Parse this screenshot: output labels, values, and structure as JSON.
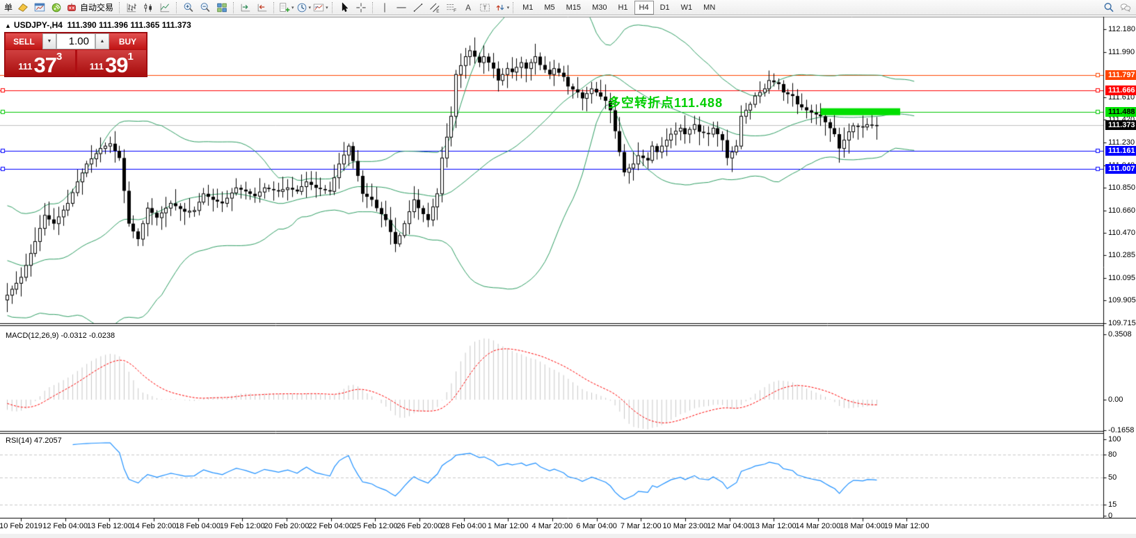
{
  "toolbar": {
    "caret_glyph": "▾",
    "groups": [
      {
        "items": [
          {
            "name": "orders-menu-label",
            "text": "单"
          },
          {
            "name": "new-order-icon"
          },
          {
            "name": "new-chart-icon"
          },
          {
            "name": "mql5-community-icon"
          },
          {
            "name": "autotrading-icon",
            "text": "自动交易"
          }
        ]
      },
      {
        "items": [
          {
            "name": "bar-chart-icon"
          },
          {
            "name": "candlestick-chart-icon"
          },
          {
            "name": "line-chart-icon"
          }
        ]
      },
      {
        "items": [
          {
            "name": "zoom-in-icon"
          },
          {
            "name": "zoom-out-icon"
          },
          {
            "name": "tile-windows-icon"
          }
        ]
      },
      {
        "items": [
          {
            "name": "auto-scroll-icon"
          },
          {
            "name": "chart-shift-icon"
          }
        ]
      },
      {
        "items": [
          {
            "name": "indicators-icon",
            "dropdown": true
          },
          {
            "name": "periods-icon",
            "dropdown": true
          },
          {
            "name": "templates-icon",
            "dropdown": true
          }
        ]
      },
      {
        "items": [
          {
            "name": "cursor-icon"
          },
          {
            "name": "crosshair-icon"
          }
        ]
      },
      {
        "items": [
          {
            "name": "vertical-line-icon"
          },
          {
            "name": "horizontal-line-icon"
          },
          {
            "name": "trendline-icon"
          },
          {
            "name": "equidistant-channel-icon"
          },
          {
            "name": "fibonacci-icon"
          },
          {
            "name": "text-icon"
          },
          {
            "name": "text-label-icon"
          },
          {
            "name": "arrows-icon",
            "dropdown": true
          }
        ]
      }
    ],
    "timeframes": [
      {
        "label": "M1"
      },
      {
        "label": "M5"
      },
      {
        "label": "M15"
      },
      {
        "label": "M30"
      },
      {
        "label": "H1"
      },
      {
        "label": "H4",
        "active": true
      },
      {
        "label": "D1"
      },
      {
        "label": "W1"
      },
      {
        "label": "MN"
      }
    ],
    "right_icons": [
      {
        "name": "search-icon"
      },
      {
        "name": "chat-icon"
      }
    ]
  },
  "chart": {
    "collapse_arrow": "▲",
    "title_symbol": "USDJPY-,H4",
    "title_quotes": "111.390 111.396 111.365 111.373",
    "open": "111.390",
    "high": "111.396",
    "low": "111.365",
    "close": "111.373"
  },
  "trade_panel": {
    "sell_label": "SELL",
    "buy_label": "BUY",
    "volume": "1.00",
    "spin_down_glyph": "▼",
    "spin_up_glyph": "▲",
    "sell_price": {
      "prefix": "111",
      "big": "37",
      "sup": "3"
    },
    "buy_price": {
      "prefix": "111",
      "big": "39",
      "sup": "1"
    }
  },
  "annotation": {
    "text": "多空转折点111.488",
    "color": "#00CE00"
  },
  "macd": {
    "label": "MACD(12,26,9) -0.0312 -0.0238"
  },
  "rsi": {
    "label": "RSI(14) 47.2057"
  },
  "chart_data": {
    "type": "candlestick",
    "symbol": "USDJPY-",
    "period": "H4",
    "grid": false,
    "candle_count": 187,
    "price_axis_ticks": [
      {
        "label": "112.180",
        "price": 112.18
      },
      {
        "label": "111.990",
        "price": 111.99
      },
      {
        "label": "111.610",
        "price": 111.61
      },
      {
        "label": "111.420",
        "price": 111.42
      },
      {
        "label": "111.230",
        "price": 111.23
      },
      {
        "label": "111.040",
        "price": 111.04
      },
      {
        "label": "110.850",
        "price": 110.85
      },
      {
        "label": "110.660",
        "price": 110.66
      },
      {
        "label": "110.470",
        "price": 110.47
      },
      {
        "label": "110.285",
        "price": 110.285
      },
      {
        "label": "110.095",
        "price": 110.095
      },
      {
        "label": "109.905",
        "price": 109.905
      },
      {
        "label": "109.715",
        "price": 109.715
      }
    ],
    "levels": [
      {
        "label": "111.797",
        "price": 111.797,
        "line_color": "#FF4500",
        "badge_bg": "#FF4500",
        "badge_fg": "#FFFFFF"
      },
      {
        "label": "111.666",
        "price": 111.666,
        "line_color": "#FF0000",
        "badge_bg": "#FF0000",
        "badge_fg": "#FFFFFF"
      },
      {
        "label": "111.488",
        "price": 111.488,
        "line_color": "#00C800",
        "badge_bg": "#00E400",
        "badge_fg": "#000000"
      },
      {
        "label": "111.161",
        "price": 111.161,
        "line_color": "#0000FF",
        "badge_bg": "#0000FF",
        "badge_fg": "#FFFFFF"
      },
      {
        "label": "111.007",
        "price": 111.007,
        "line_color": "#0000FF",
        "badge_bg": "#0000FF",
        "badge_fg": "#FFFFFF"
      }
    ],
    "current_price": {
      "label": "111.373",
      "price": 111.373,
      "line_color": "#C0C0C0",
      "badge_bg": "#000000",
      "badge_fg": "#FFFFFF"
    },
    "highlight_bar": {
      "price": 111.488,
      "color": "#00DF00",
      "from_candle": 174,
      "to_candle": 191,
      "thickness": 10
    },
    "bollinger": {
      "period": 34,
      "deviation": 2,
      "color": "#2E9E63"
    },
    "candle_up_color": "#FFFFFF",
    "candle_down_color": "#000000",
    "candle_border": "#000000",
    "close_path": [
      [
        0,
        109.95
      ],
      [
        3,
        110.1
      ],
      [
        6,
        110.4
      ],
      [
        8,
        110.62
      ],
      [
        10,
        110.55
      ],
      [
        13,
        110.72
      ],
      [
        15,
        110.9
      ],
      [
        17,
        111.05
      ],
      [
        20,
        111.18
      ],
      [
        22,
        111.22
      ],
      [
        24,
        111.1
      ],
      [
        26,
        110.55
      ],
      [
        28,
        110.42
      ],
      [
        30,
        110.68
      ],
      [
        32,
        110.6
      ],
      [
        35,
        110.72
      ],
      [
        38,
        110.65
      ],
      [
        40,
        110.66
      ],
      [
        42,
        110.8
      ],
      [
        44,
        110.75
      ],
      [
        46,
        110.72
      ],
      [
        49,
        110.85
      ],
      [
        51,
        110.82
      ],
      [
        53,
        110.78
      ],
      [
        55,
        110.85
      ],
      [
        58,
        110.82
      ],
      [
        60,
        110.85
      ],
      [
        62,
        110.82
      ],
      [
        64,
        110.9
      ],
      [
        66,
        110.85
      ],
      [
        69,
        110.82
      ],
      [
        71,
        111.05
      ],
      [
        73,
        111.2
      ],
      [
        75,
        110.95
      ],
      [
        76,
        110.8
      ],
      [
        78,
        110.75
      ],
      [
        79,
        110.68
      ],
      [
        81,
        110.58
      ],
      [
        83,
        110.38
      ],
      [
        84,
        110.45
      ],
      [
        87,
        110.75
      ],
      [
        88,
        110.68
      ],
      [
        90,
        110.58
      ],
      [
        92,
        110.8
      ],
      [
        93,
        111.1
      ],
      [
        95,
        111.45
      ],
      [
        96,
        111.8
      ],
      [
        98,
        111.95
      ],
      [
        99,
        112.0
      ],
      [
        101,
        111.9
      ],
      [
        102,
        111.95
      ],
      [
        104,
        111.85
      ],
      [
        105,
        111.75
      ],
      [
        107,
        111.85
      ],
      [
        108,
        111.82
      ],
      [
        110,
        111.9
      ],
      [
        111,
        111.85
      ],
      [
        113,
        111.95
      ],
      [
        114,
        111.88
      ],
      [
        116,
        111.8
      ],
      [
        117,
        111.85
      ],
      [
        119,
        111.78
      ],
      [
        120,
        111.7
      ],
      [
        122,
        111.65
      ],
      [
        123,
        111.6
      ],
      [
        125,
        111.68
      ],
      [
        126,
        111.65
      ],
      [
        128,
        111.58
      ],
      [
        129,
        111.5
      ],
      [
        131,
        111.15
      ],
      [
        132,
        110.98
      ],
      [
        134,
        111.05
      ],
      [
        135,
        111.12
      ],
      [
        137,
        111.08
      ],
      [
        138,
        111.2
      ],
      [
        139,
        111.15
      ],
      [
        141,
        111.25
      ],
      [
        142,
        111.3
      ],
      [
        144,
        111.35
      ],
      [
        145,
        111.3
      ],
      [
        147,
        111.38
      ],
      [
        148,
        111.32
      ],
      [
        150,
        111.3
      ],
      [
        151,
        111.35
      ],
      [
        153,
        111.25
      ],
      [
        154,
        111.1
      ],
      [
        156,
        111.2
      ],
      [
        157,
        111.45
      ],
      [
        159,
        111.55
      ],
      [
        160,
        111.62
      ],
      [
        162,
        111.68
      ],
      [
        163,
        111.75
      ],
      [
        165,
        111.72
      ],
      [
        166,
        111.65
      ],
      [
        168,
        111.62
      ],
      [
        169,
        111.55
      ],
      [
        171,
        111.5
      ],
      [
        172,
        111.48
      ],
      [
        174,
        111.45
      ],
      [
        175,
        111.4
      ],
      [
        177,
        111.3
      ],
      [
        178,
        111.18
      ],
      [
        180,
        111.32
      ],
      [
        181,
        111.37
      ],
      [
        183,
        111.36
      ],
      [
        184,
        111.38
      ],
      [
        186,
        111.373
      ]
    ],
    "macd_panel": {
      "params": [
        12,
        26,
        9
      ],
      "current_values": [
        "-0.0312",
        "-0.0238"
      ],
      "axis": [
        {
          "label": "0.3508",
          "value": 0.3508
        },
        {
          "label": "0.00",
          "value": 0
        },
        {
          "label": "-0.1658",
          "value": -0.1658
        }
      ],
      "hist_color": "#C8C8C8",
      "signal_color": "#FF0000"
    },
    "rsi_panel": {
      "period": 14,
      "current_value": 47.2057,
      "axis": [
        {
          "label": "100",
          "value": 100
        },
        {
          "label": "80",
          "value": 80
        },
        {
          "label": "50",
          "value": 50
        },
        {
          "label": "15",
          "value": 15
        },
        {
          "label": "0",
          "value": 0
        }
      ],
      "dashed_levels": [
        80,
        50,
        15
      ],
      "line_color": "#1E90FF",
      "level_color": "#C9C9C9"
    },
    "time_labels": [
      "10 Feb 2019",
      "12 Feb 04:00",
      "13 Feb 12:00",
      "14 Feb 20:00",
      "18 Feb 04:00",
      "19 Feb 12:00",
      "20 Feb 20:00",
      "22 Feb 04:00",
      "25 Feb 12:00",
      "26 Feb 20:00",
      "28 Feb 04:00",
      "1 Mar 12:00",
      "4 Mar 20:00",
      "6 Mar 04:00",
      "7 Mar 12:00",
      "10 Mar 23:00",
      "12 Mar 04:00",
      "13 Mar 12:00",
      "14 Mar 20:00",
      "18 Mar 04:00",
      "19 Mar 12:00"
    ]
  }
}
